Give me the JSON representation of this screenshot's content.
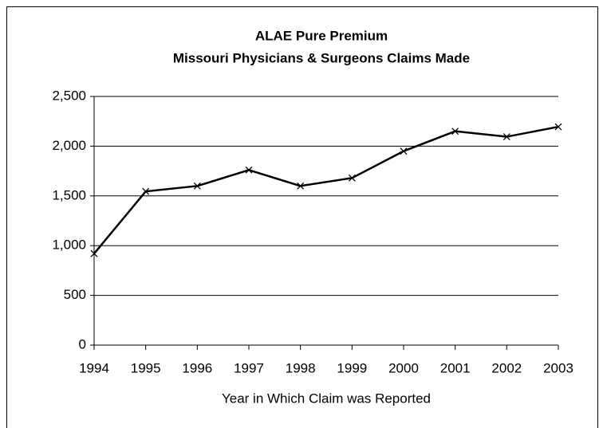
{
  "chart_data": {
    "type": "line",
    "title": [
      "ALAE Pure Premium",
      "Missouri Physicians & Surgeons Claims Made"
    ],
    "x_label": "Year in Which Claim was Reported",
    "x": [
      1994,
      1995,
      1996,
      1997,
      1998,
      1999,
      2000,
      2001,
      2002,
      2003
    ],
    "values": [
      920,
      1545,
      1600,
      1760,
      1600,
      1680,
      1950,
      2150,
      2095,
      2195
    ],
    "color": "#000000",
    "xlim": [
      1994,
      2003
    ],
    "xticks": [
      1994,
      1995,
      1996,
      1997,
      1998,
      1999,
      2000,
      2001,
      2002,
      2003
    ],
    "ylim": [
      0,
      2500
    ],
    "yticks": [
      0,
      500,
      {
        "value": 1000,
        "label": "1,000"
      },
      {
        "value": 1500,
        "label": "1,500"
      },
      {
        "value": 2000,
        "label": "2,000"
      },
      {
        "value": 2500,
        "label": "2,500"
      }
    ],
    "grid": true
  }
}
